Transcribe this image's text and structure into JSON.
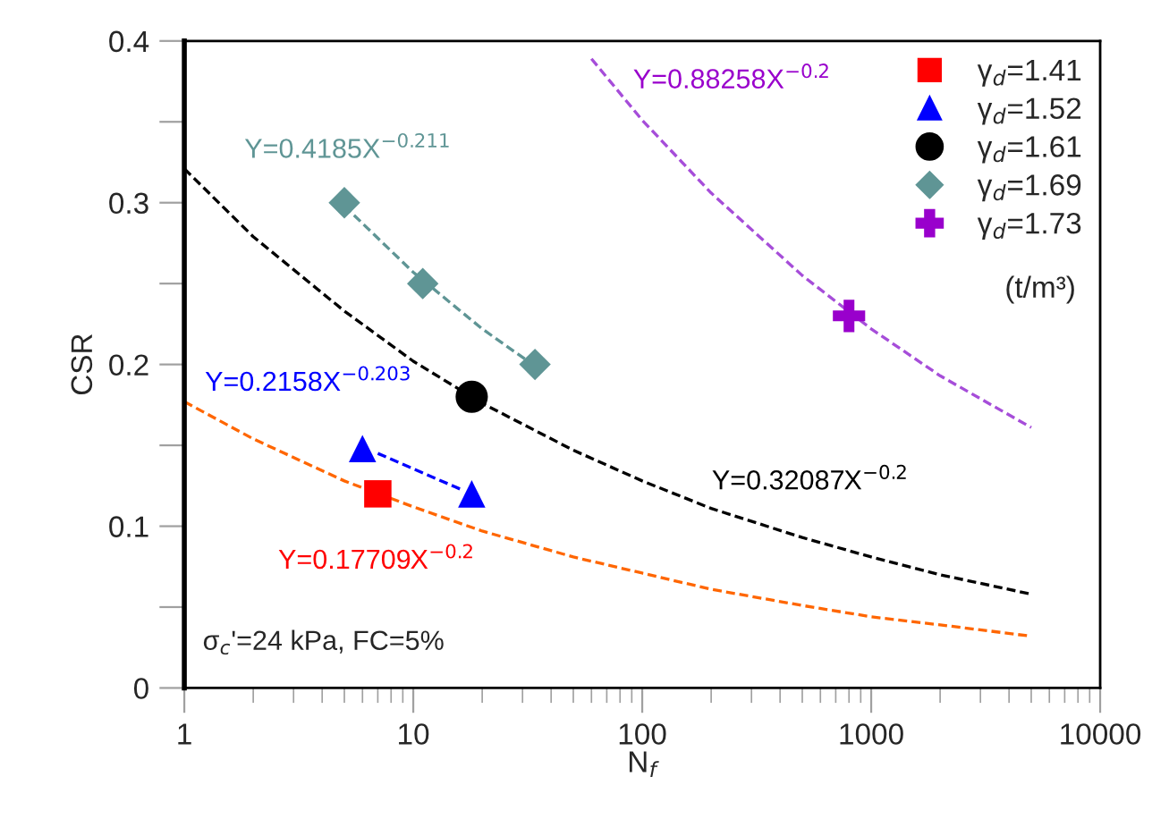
{
  "chart_data": {
    "type": "scatter",
    "xlabel": "N$_{f}$",
    "ylabel": "CSR",
    "log": "x",
    "xlim": [
      1,
      10000
    ],
    "xticks": [
      1,
      10,
      100,
      1000,
      10000
    ],
    "ylim": [
      0,
      0.4
    ],
    "yticks": [
      0,
      {
        "value": 0.05,
        "label": null
      },
      0.1,
      {
        "value": 0.15,
        "label": null
      },
      0.2,
      {
        "value": 0.25,
        "label": null
      },
      0.3,
      {
        "value": 0.35,
        "label": null
      },
      0.4
    ],
    "grid": false,
    "legend": "top right",
    "series": [
      {
        "name": "γ$_{d}$=1.41",
        "marker": "square",
        "color": "#ff0000",
        "x": [
          7
        ],
        "values": [
          0.12
        ]
      },
      {
        "name": "γ$_{d}$=1.52",
        "marker": "triangle",
        "color": "#0000ff",
        "x": [
          6,
          18
        ],
        "values": [
          0.148,
          0.12
        ]
      },
      {
        "name": "γ$_{d}$=1.61",
        "marker": "circle",
        "color": "#000000",
        "x": [
          18
        ],
        "values": [
          0.18
        ]
      },
      {
        "name": "γ$_{d}$=1.69",
        "marker": "diamond",
        "color": "#5f9595",
        "x": [
          5,
          11,
          34
        ],
        "values": [
          0.3,
          0.25,
          0.2
        ]
      },
      {
        "name": "γ$_{d}$=1.73",
        "marker": "cross",
        "color": "#9900cc",
        "x": [
          800
        ],
        "values": [
          0.23
        ]
      },
      {
        "type": "line",
        "line_style": "dashed",
        "marker": "none",
        "color": "#ff6600",
        "x": [
          1,
          2,
          5,
          10,
          20,
          50,
          100,
          200,
          500,
          1000,
          2000,
          5000
        ],
        "values": [
          0.177,
          0.154,
          0.128,
          0.112,
          0.097,
          0.081,
          0.071,
          0.061,
          0.051,
          0.044,
          0.039,
          0.032
        ]
      },
      {
        "type": "line",
        "line_style": "dashed",
        "marker": "none",
        "color": "#0000ff",
        "x": [
          7,
          16
        ],
        "values": [
          0.145,
          0.123
        ]
      },
      {
        "type": "line",
        "line_style": "dashed",
        "marker": "none",
        "color": "#000000",
        "x": [
          1,
          2,
          5,
          10,
          20,
          50,
          100,
          200,
          500,
          1000,
          2000,
          5000
        ],
        "values": [
          0.321,
          0.279,
          0.233,
          0.202,
          0.176,
          0.147,
          0.128,
          0.111,
          0.093,
          0.081,
          0.07,
          0.058
        ]
      },
      {
        "type": "line",
        "line_style": "dashed",
        "marker": "none",
        "color": "#5f9595",
        "x": [
          5,
          10,
          20,
          34
        ],
        "values": [
          0.298,
          0.257,
          0.222,
          0.199
        ]
      },
      {
        "type": "line",
        "line_style": "dashed",
        "marker": "none",
        "color": "#a64dd9",
        "x": [
          60,
          100,
          200,
          500,
          1000,
          2000,
          5000
        ],
        "values": [
          0.389,
          0.351,
          0.306,
          0.255,
          0.222,
          0.193,
          0.161
        ]
      }
    ],
    "annotations": [
      "Y=0.17709X$^{−0.2}$",
      "Y=0.2158X$^{−0.203}$",
      "Y=0.32087X$^{−0.2}$",
      "Y=0.4185X$^{−0.211}$",
      "Y=0.88258X$^{−0.2}$",
      "σ$_{c}$'=24 kPa, FC=5%",
      "(t/m³)"
    ]
  }
}
